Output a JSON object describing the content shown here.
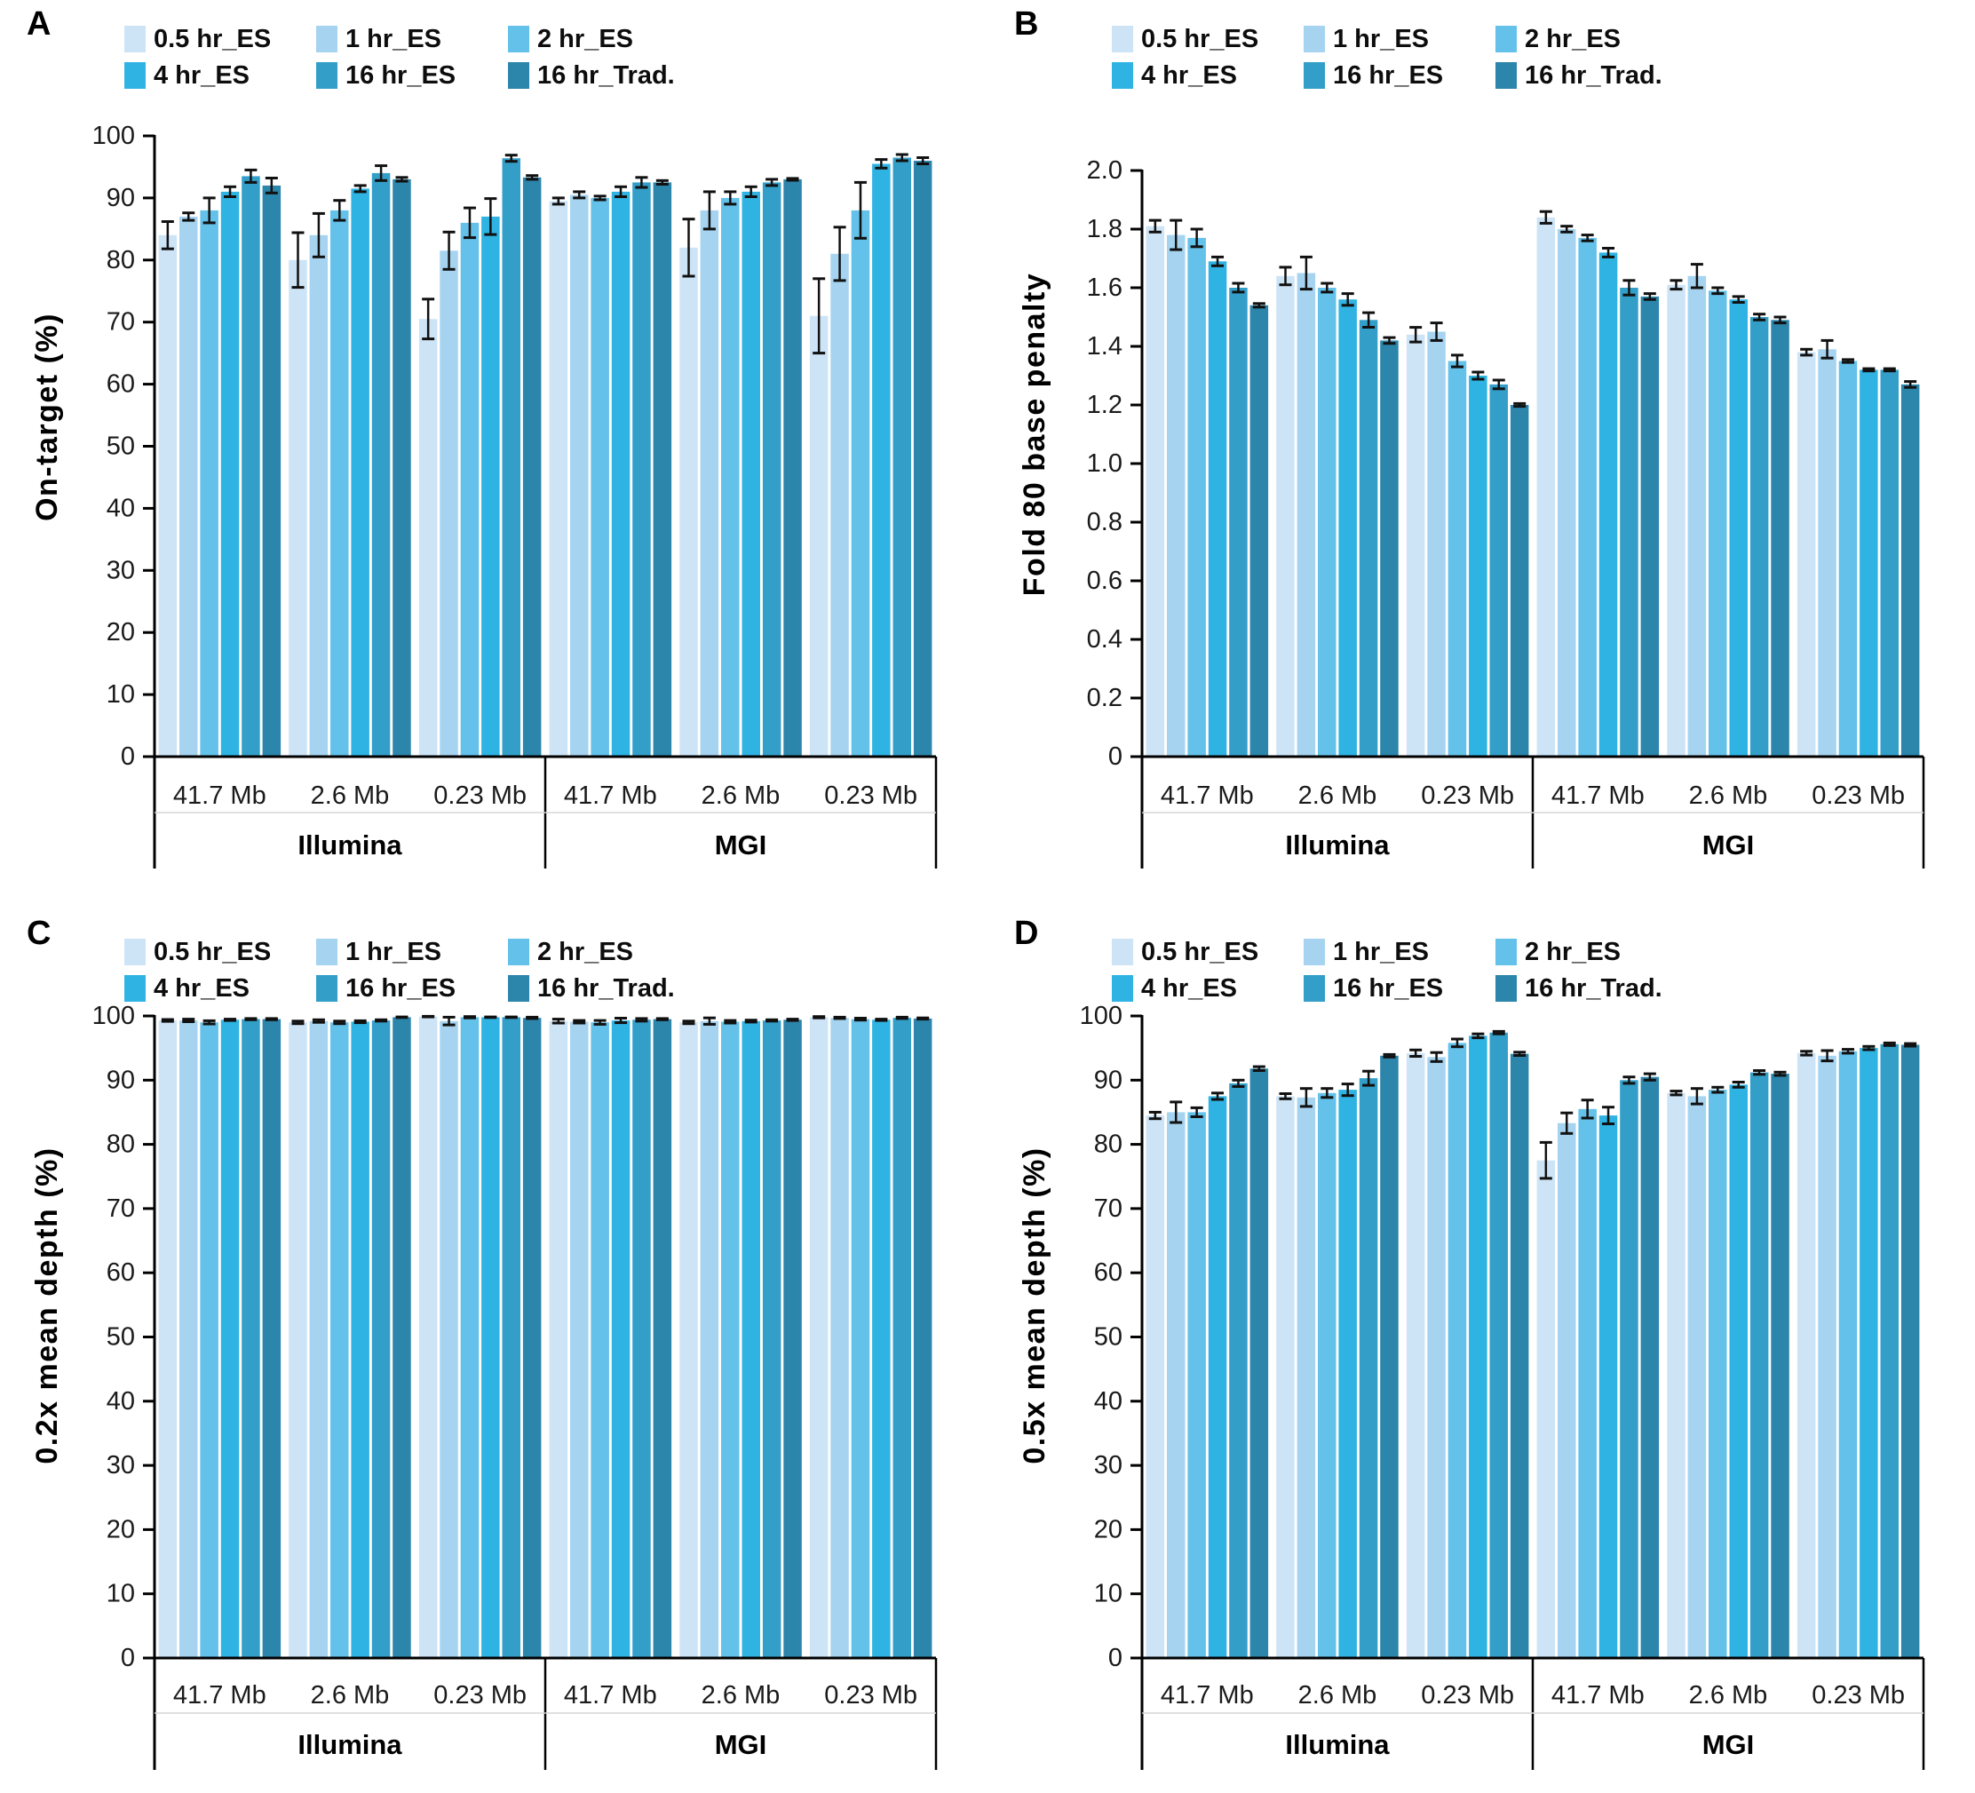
{
  "legend": {
    "items": [
      {
        "label": "0.5 hr_ES",
        "color": "#cde4f6"
      },
      {
        "label": "1 hr_ES",
        "color": "#a6d4f0"
      },
      {
        "label": "2 hr_ES",
        "color": "#63c1ea"
      },
      {
        "label": "4 hr_ES",
        "color": "#2fb3e3"
      },
      {
        "label": "16 hr_ES",
        "color": "#339fc9"
      },
      {
        "label": "16 hr_Trad.",
        "color": "#2c85ab"
      }
    ]
  },
  "axis": {
    "group_labels": [
      "41.7 Mb",
      "2.6 Mb",
      "0.23 Mb"
    ],
    "platforms": [
      "Illumina",
      "MGI"
    ]
  },
  "chart_data": [
    {
      "panel": "A",
      "type": "bar",
      "ylabel": "On-target (%)",
      "ylim": [
        0,
        100
      ],
      "ytick_step": 10,
      "ytick_labels": [
        "0",
        "10",
        "20",
        "30",
        "40",
        "50",
        "60",
        "70",
        "80",
        "90",
        "100"
      ],
      "categories": [
        "Illumina 41.7 Mb",
        "Illumina 2.6 Mb",
        "Illumina 0.23 Mb",
        "MGI 41.7 Mb",
        "MGI 2.6 Mb",
        "MGI 0.23 Mb"
      ],
      "legend_position": "top",
      "grid": false,
      "error_bars": true,
      "series": [
        {
          "name": "0.5 hr_ES",
          "values": [
            84,
            80,
            70.5,
            89.5,
            82,
            71
          ],
          "errors": [
            2.2,
            4.4,
            3.2,
            0.5,
            4.6,
            6
          ]
        },
        {
          "name": "1 hr_ES",
          "values": [
            87,
            84,
            81.5,
            90.5,
            88,
            81
          ],
          "errors": [
            0.6,
            3.5,
            3.0,
            0.5,
            3.0,
            4.3
          ]
        },
        {
          "name": "2 hr_ES",
          "values": [
            88,
            88,
            86,
            90,
            90,
            88
          ],
          "errors": [
            2.0,
            1.6,
            2.4,
            0.3,
            1.0,
            4.5
          ]
        },
        {
          "name": "4 hr_ES",
          "values": [
            91,
            91.5,
            87,
            91,
            91,
            95.5
          ],
          "errors": [
            0.8,
            0.5,
            2.9,
            0.8,
            0.8,
            0.7
          ]
        },
        {
          "name": "16 hr_ES",
          "values": [
            93.5,
            94,
            96.4,
            92.5,
            92.5,
            96.5
          ],
          "errors": [
            1.0,
            1.2,
            0.5,
            0.8,
            0.5,
            0.5
          ]
        },
        {
          "name": "16 hr_Trad.",
          "values": [
            92,
            93,
            93.3,
            92.5,
            93,
            96
          ],
          "errors": [
            1.2,
            0.3,
            0.3,
            0.3,
            0.15,
            0.5
          ]
        }
      ]
    },
    {
      "panel": "B",
      "type": "bar",
      "ylabel": "Fold 80 base penalty",
      "ylim": [
        0,
        2.0
      ],
      "ytick_step": 0.2,
      "ytick_labels": [
        "0",
        "0.2",
        "0.4",
        "0.6",
        "0.8",
        "1.0",
        "1.2",
        "1.4",
        "1.6",
        "1.8",
        "2.0"
      ],
      "categories": [
        "Illumina 41.7 Mb",
        "Illumina 2.6 Mb",
        "Illumina 0.23 Mb",
        "MGI 41.7 Mb",
        "MGI 2.6 Mb",
        "MGI 0.23 Mb"
      ],
      "legend_position": "top",
      "grid": false,
      "error_bars": true,
      "series": [
        {
          "name": "0.5 hr_ES",
          "values": [
            1.81,
            1.64,
            1.44,
            1.84,
            1.61,
            1.38
          ],
          "errors": [
            0.02,
            0.03,
            0.025,
            0.02,
            0.015,
            0.01
          ]
        },
        {
          "name": "1 hr_ES",
          "values": [
            1.78,
            1.65,
            1.45,
            1.8,
            1.64,
            1.39
          ],
          "errors": [
            0.05,
            0.055,
            0.03,
            0.01,
            0.04,
            0.03
          ]
        },
        {
          "name": "2 hr_ES",
          "values": [
            1.77,
            1.6,
            1.35,
            1.77,
            1.59,
            1.35
          ],
          "errors": [
            0.03,
            0.015,
            0.02,
            0.01,
            0.01,
            0.005
          ]
        },
        {
          "name": "4 hr_ES",
          "values": [
            1.69,
            1.56,
            1.3,
            1.72,
            1.56,
            1.32
          ],
          "errors": [
            0.015,
            0.02,
            0.012,
            0.015,
            0.01,
            0.004
          ]
        },
        {
          "name": "16 hr_ES",
          "values": [
            1.6,
            1.49,
            1.27,
            1.6,
            1.5,
            1.32
          ],
          "errors": [
            0.015,
            0.025,
            0.015,
            0.025,
            0.01,
            0.004
          ]
        },
        {
          "name": "16 hr_Trad.",
          "values": [
            1.54,
            1.42,
            1.2,
            1.57,
            1.49,
            1.27
          ],
          "errors": [
            0.006,
            0.01,
            0.005,
            0.01,
            0.01,
            0.01
          ]
        }
      ]
    },
    {
      "panel": "C",
      "type": "bar",
      "ylabel": "0.2x mean depth (%)",
      "ylim": [
        0,
        100
      ],
      "ytick_step": 10,
      "ytick_labels": [
        "0",
        "10",
        "20",
        "30",
        "40",
        "50",
        "60",
        "70",
        "80",
        "90",
        "100"
      ],
      "categories": [
        "Illumina 41.7 Mb",
        "Illumina 2.6 Mb",
        "Illumina 0.23 Mb",
        "MGI 41.7 Mb",
        "MGI 2.6 Mb",
        "MGI 0.23 Mb"
      ],
      "legend_position": "top",
      "grid": false,
      "error_bars": true,
      "series": [
        {
          "name": "0.5 hr_ES",
          "values": [
            99.3,
            99.0,
            99.9,
            99.2,
            99.0,
            99.8
          ],
          "errors": [
            0.15,
            0.2,
            0.05,
            0.3,
            0.2,
            0.1
          ]
        },
        {
          "name": "1 hr_ES",
          "values": [
            99.3,
            99.2,
            99.2,
            99.1,
            99.2,
            99.7
          ],
          "errors": [
            0.2,
            0.2,
            0.6,
            0.2,
            0.5,
            0.1
          ]
        },
        {
          "name": "2 hr_ES",
          "values": [
            99.0,
            99.0,
            99.8,
            99.0,
            99.1,
            99.5
          ],
          "errors": [
            0.25,
            0.2,
            0.1,
            0.3,
            0.2,
            0.15
          ]
        },
        {
          "name": "4 hr_ES",
          "values": [
            99.4,
            99.1,
            99.8,
            99.3,
            99.2,
            99.4
          ],
          "errors": [
            0.1,
            0.15,
            0.05,
            0.35,
            0.15,
            0.1
          ]
        },
        {
          "name": "16 hr_ES",
          "values": [
            99.5,
            99.3,
            99.8,
            99.4,
            99.3,
            99.7
          ],
          "errors": [
            0.1,
            0.1,
            0.05,
            0.2,
            0.1,
            0.1
          ]
        },
        {
          "name": "16 hr_Trad.",
          "values": [
            99.5,
            99.8,
            99.7,
            99.5,
            99.4,
            99.6
          ],
          "errors": [
            0.1,
            0.05,
            0.1,
            0.1,
            0.1,
            0.1
          ]
        }
      ]
    },
    {
      "panel": "D",
      "type": "bar",
      "ylabel": "0.5x mean depth (%)",
      "ylim": [
        0,
        100
      ],
      "ytick_step": 10,
      "ytick_labels": [
        "0",
        "10",
        "20",
        "30",
        "40",
        "50",
        "60",
        "70",
        "80",
        "90",
        "100"
      ],
      "categories": [
        "Illumina 41.7 Mb",
        "Illumina 2.6 Mb",
        "Illumina 0.23 Mb",
        "MGI 41.7 Mb",
        "MGI 2.6 Mb",
        "MGI 0.23 Mb"
      ],
      "legend_position": "top",
      "grid": false,
      "error_bars": true,
      "series": [
        {
          "name": "0.5 hr_ES",
          "values": [
            84.5,
            87.5,
            94.2,
            77.5,
            88,
            94.2
          ],
          "errors": [
            0.5,
            0.4,
            0.5,
            2.8,
            0.3,
            0.3
          ]
        },
        {
          "name": "1 hr_ES",
          "values": [
            85,
            87.3,
            93.6,
            83.3,
            87.5,
            93.8
          ],
          "errors": [
            1.6,
            1.4,
            0.7,
            1.6,
            1.2,
            0.8
          ]
        },
        {
          "name": "2 hr_ES",
          "values": [
            85,
            88,
            95.8,
            85.5,
            88.5,
            94.5
          ],
          "errors": [
            0.7,
            0.7,
            0.6,
            1.4,
            0.4,
            0.3
          ]
        },
        {
          "name": "4 hr_ES",
          "values": [
            87.5,
            88.5,
            96.9,
            84.5,
            89.3,
            95
          ],
          "errors": [
            0.5,
            0.9,
            0.3,
            1.3,
            0.4,
            0.25
          ]
        },
        {
          "name": "16 hr_ES",
          "values": [
            89.5,
            90.3,
            97.4,
            90,
            91.2,
            95.6
          ],
          "errors": [
            0.5,
            1.1,
            0.2,
            0.5,
            0.3,
            0.2
          ]
        },
        {
          "name": "16 hr_Trad.",
          "values": [
            91.8,
            93.8,
            94.1,
            90.5,
            91,
            95.5
          ],
          "errors": [
            0.3,
            0.2,
            0.25,
            0.5,
            0.25,
            0.2
          ]
        }
      ]
    }
  ],
  "series_colors": [
    "#cde4f6",
    "#a6d4f0",
    "#63c1ea",
    "#2fb3e3",
    "#339fc9",
    "#2c85ab"
  ]
}
